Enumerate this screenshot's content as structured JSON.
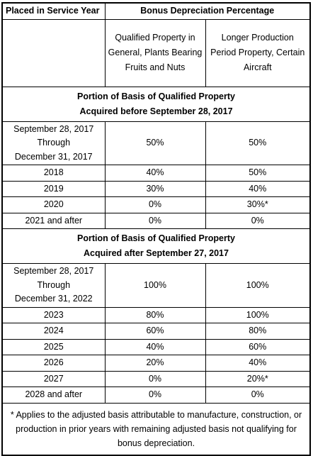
{
  "table": {
    "header": [
      "Placed in Service Year",
      "Bonus Depreciation Percentage"
    ],
    "subheader": [
      "Qualified Property in General, Plants Bearing Fruits and Nuts",
      "Longer Production Period Property, Certain Aircraft"
    ],
    "sections": [
      {
        "title": [
          "Portion of Basis of Qualified Property",
          "Acquired before September 28, 2017"
        ],
        "rows": [
          [
            [
              "September 28, 2017",
              "Through",
              "December 31, 2017"
            ],
            "50%",
            "50%"
          ],
          [
            [
              "2018"
            ],
            "40%",
            "50%"
          ],
          [
            [
              "2019"
            ],
            "30%",
            "40%"
          ],
          [
            [
              "2020"
            ],
            "0%",
            "30%*"
          ],
          [
            [
              "2021 and after"
            ],
            "0%",
            "0%"
          ]
        ]
      },
      {
        "title": [
          "Portion of Basis of Qualified Property",
          "Acquired after September 27, 2017"
        ],
        "rows": [
          [
            [
              "September 28, 2017",
              "Through",
              "December 31, 2022"
            ],
            "100%",
            "100%"
          ],
          [
            [
              "2023"
            ],
            "80%",
            "100%"
          ],
          [
            [
              "2024"
            ],
            "60%",
            "80%"
          ],
          [
            [
              "2025"
            ],
            "40%",
            "60%"
          ],
          [
            [
              "2026"
            ],
            "20%",
            "40%"
          ],
          [
            [
              "2027"
            ],
            "0%",
            "20%*"
          ],
          [
            [
              "2028 and after"
            ],
            "0%",
            "0%"
          ]
        ]
      }
    ],
    "footnote": "* Applies to the adjusted basis attributable to manufacture, construction, or production in prior years with remaining adjusted basis not qualifying for bonus depreciation."
  }
}
